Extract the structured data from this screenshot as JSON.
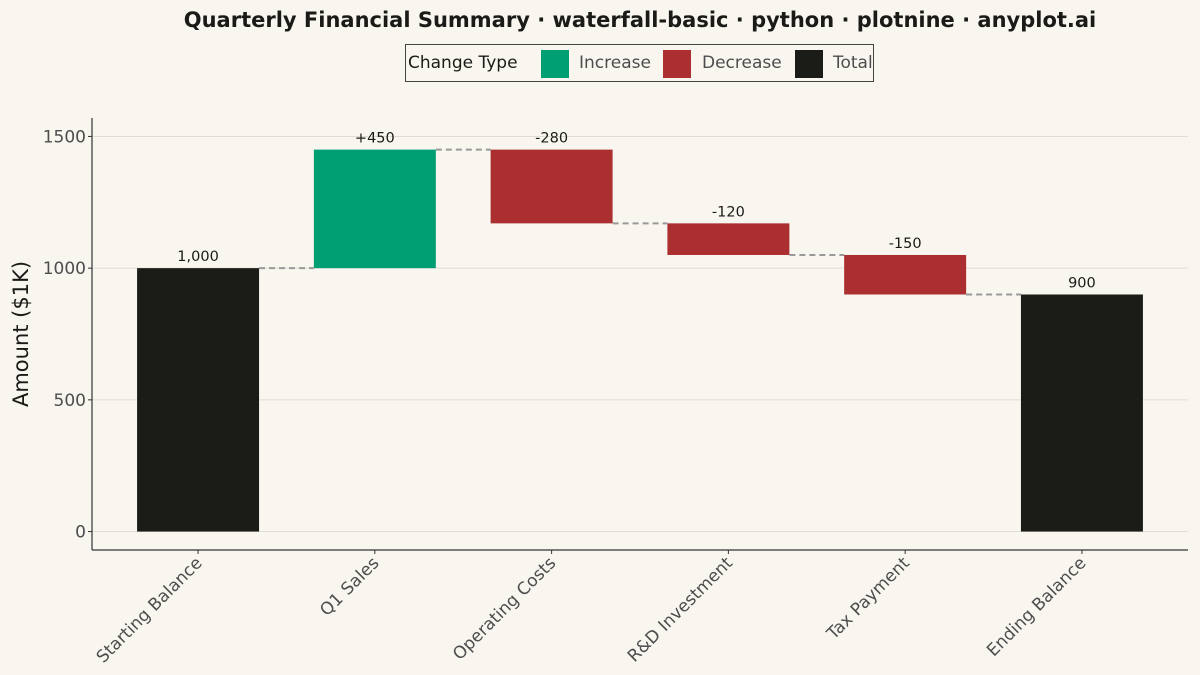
{
  "title": "Quarterly Financial Summary · waterfall-basic · python · plotnine · anyplot.ai",
  "chart_data": {
    "type": "bar",
    "subtype": "waterfall",
    "title": "Quarterly Financial Summary · waterfall-basic · python · plotnine · anyplot.ai",
    "xlabel": "",
    "ylabel": "Amount ($1K)",
    "ylim": [
      -70,
      1570
    ],
    "yticks": [
      0,
      500,
      1000,
      1500
    ],
    "ytick_labels": [
      "0",
      "500",
      "1000",
      "1500"
    ],
    "grid": "horizontal",
    "categories": [
      "Starting Balance",
      "Q1 Sales",
      "Operating Costs",
      "R&D Investment",
      "Tax Payment",
      "Ending Balance"
    ],
    "changes": [
      1000,
      450,
      -280,
      -120,
      -150,
      900
    ],
    "start": [
      0,
      1000,
      1450,
      1170,
      1050,
      0
    ],
    "end": [
      1000,
      1450,
      1170,
      1050,
      900,
      900
    ],
    "types": [
      "Total",
      "Increase",
      "Decrease",
      "Decrease",
      "Decrease",
      "Total"
    ],
    "data_labels": [
      "1,000",
      "+450",
      "-280",
      "-120",
      "-150",
      "900"
    ],
    "legend": {
      "title": "Change Type",
      "placement": "top-center",
      "entries": [
        {
          "name": "Increase",
          "color": "#009E73"
        },
        {
          "name": "Decrease",
          "color": "#AB2E31"
        },
        {
          "name": "Total",
          "color": "#1B1B17"
        }
      ]
    },
    "colors": {
      "Increase": "#009E73",
      "Decrease": "#AB2E31",
      "Total": "#1B1B17"
    },
    "connector_color": "#999999"
  }
}
